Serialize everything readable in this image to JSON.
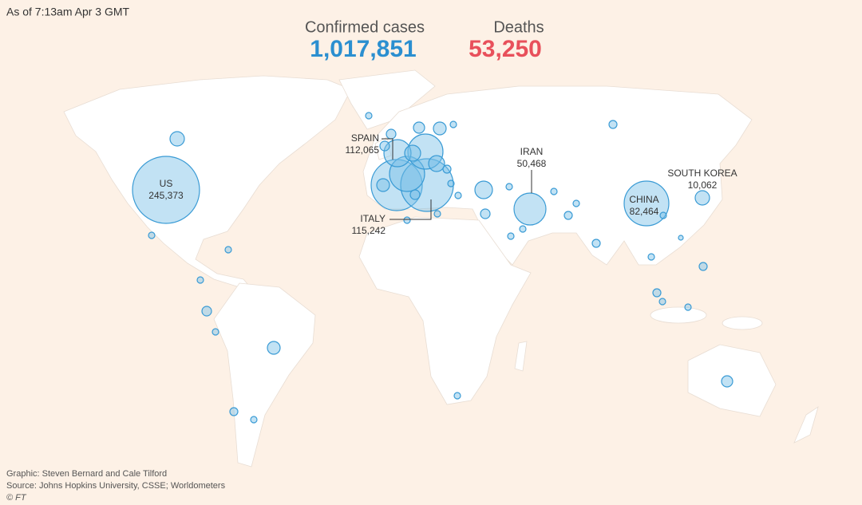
{
  "header": {
    "timestamp": "As of 7:13am Apr 3 GMT",
    "stats": [
      {
        "label": "Confirmed cases",
        "value": "1,017,851"
      },
      {
        "label": "Deaths",
        "value": "53,250"
      }
    ]
  },
  "map": {
    "callouts": [
      {
        "name": "US",
        "value": "245,373"
      },
      {
        "name": "SPAIN",
        "value": "112,065"
      },
      {
        "name": "ITALY",
        "value": "115,242"
      },
      {
        "name": "IRAN",
        "value": "50,468"
      },
      {
        "name": "CHINA",
        "value": "82,464"
      },
      {
        "name": "SOUTH KOREA",
        "value": "10,062"
      }
    ]
  },
  "footer": {
    "credit": "Graphic: Steven Bernard and Cale Tilford",
    "source": "Source: Johns Hopkins University, CSSE; Worldometers",
    "copyright": "© FT"
  }
}
